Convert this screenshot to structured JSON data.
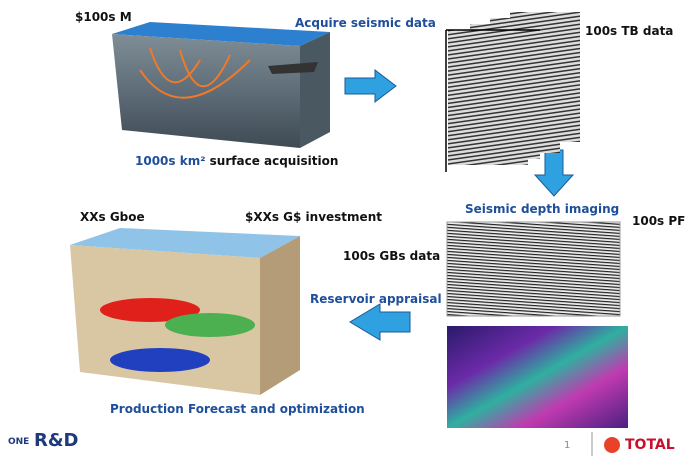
{
  "labels": {
    "acquisition_cost": "$100s M",
    "acquire": "Acquire seismic data",
    "tb_data": "100s TB data",
    "surface_area": "1000s km²",
    "surface_rest": "surface acquisition",
    "imaging": "Seismic depth imaging",
    "pf": "100s PF",
    "gboe": "XXs Gboe",
    "investment": "$XXs G$ investment",
    "gb_data": "100s GBs data",
    "appraisal": "Reservoir appraisal",
    "production": "Production Forecast and optimization"
  },
  "footer": {
    "logo_small": "ONE",
    "logo_big": "R&D",
    "page": "1",
    "brand": "TOTAL"
  }
}
